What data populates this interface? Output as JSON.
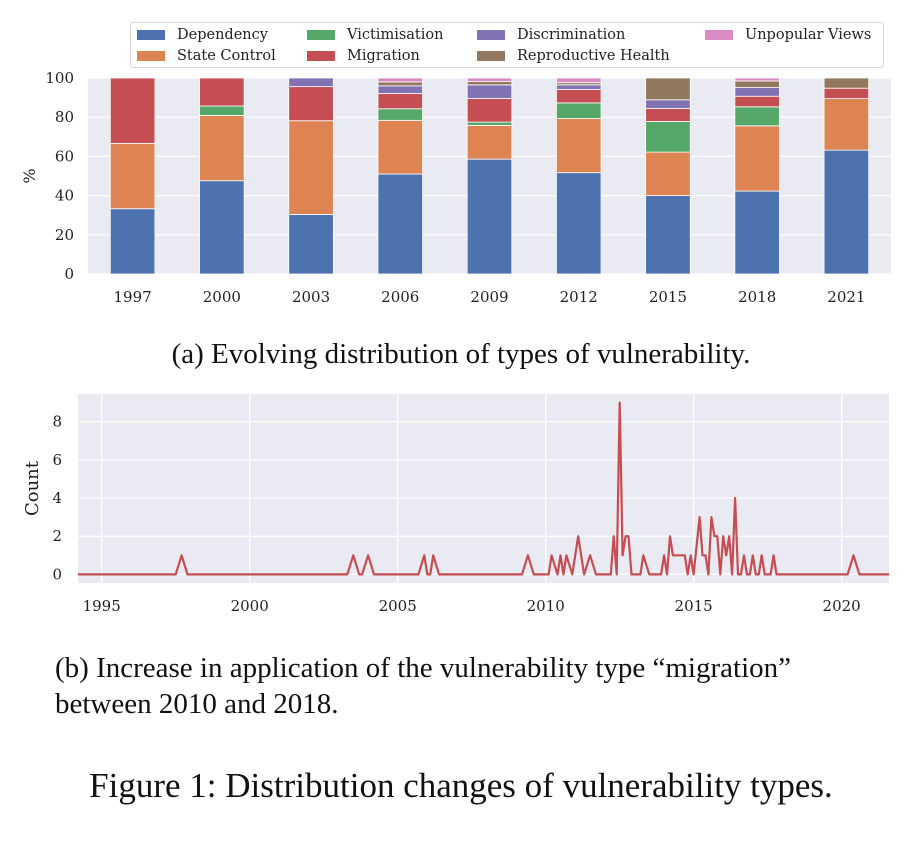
{
  "chart_data": [
    {
      "type": "bar",
      "stacked": true,
      "title": "",
      "caption": "(a) Evolving distribution of types of vulnerability.",
      "xlabel": "",
      "ylabel": "%",
      "ylim": [
        0,
        100
      ],
      "yticks": [
        "0",
        "20",
        "40",
        "60",
        "80",
        "100"
      ],
      "legend_position": "top",
      "grid": true,
      "categories": [
        "1997",
        "2000",
        "2003",
        "2006",
        "2009",
        "2012",
        "2015",
        "2018",
        "2021"
      ],
      "series": [
        {
          "name": "Dependency",
          "color": "#4c72b0",
          "values": [
            33.3,
            47.6,
            30.4,
            51.0,
            58.6,
            51.7,
            40.0,
            42.3,
            63.2
          ]
        },
        {
          "name": "State Control",
          "color": "#dd8452",
          "values": [
            33.3,
            33.3,
            47.8,
            27.4,
            17.2,
            27.6,
            22.2,
            33.3,
            26.3
          ]
        },
        {
          "name": "Victimisation",
          "color": "#55a868",
          "values": [
            0,
            4.8,
            0,
            5.9,
            1.7,
            8.0,
            15.6,
            9.7,
            0
          ]
        },
        {
          "name": "Migration",
          "color": "#c44e52",
          "values": [
            33.4,
            14.3,
            17.4,
            7.8,
            12.1,
            6.9,
            6.7,
            5.4,
            5.3
          ]
        },
        {
          "name": "Discrimination",
          "color": "#8172b3",
          "values": [
            0,
            0,
            4.4,
            3.9,
            6.9,
            2.3,
            4.4,
            4.4,
            0
          ]
        },
        {
          "name": "Reproductive Health",
          "color": "#937860",
          "values": [
            0,
            0,
            0,
            2.0,
            1.7,
            1.1,
            11.1,
            3.4,
            5.2
          ]
        },
        {
          "name": "Unpopular Views",
          "color": "#da8bc3",
          "values": [
            0,
            0,
            0,
            2.0,
            1.8,
            2.4,
            0,
            1.5,
            0
          ]
        }
      ]
    },
    {
      "type": "line",
      "title": "",
      "caption_lines": [
        "(b) Increase in application of the vulnerability type “migration”",
        "between 2010 and 2018."
      ],
      "xlabel": "",
      "ylabel": "Count",
      "xlim": [
        1994.2,
        2021.6
      ],
      "ylim": [
        -0.45,
        9.45
      ],
      "xticks": [
        1995,
        2000,
        2005,
        2010,
        2015,
        2020
      ],
      "yticks": [
        0,
        2,
        4,
        6,
        8
      ],
      "grid": true,
      "series": [
        {
          "name": "migration",
          "color": "#c44e52",
          "points": [
            [
              1994.2,
              0
            ],
            [
              1997.5,
              0
            ],
            [
              1997.7,
              1
            ],
            [
              1997.9,
              0
            ],
            [
              2003.3,
              0
            ],
            [
              2003.5,
              1
            ],
            [
              2003.7,
              0
            ],
            [
              2003.8,
              0
            ],
            [
              2004.0,
              1
            ],
            [
              2004.2,
              0
            ],
            [
              2005.7,
              0
            ],
            [
              2005.9,
              1
            ],
            [
              2006.0,
              0
            ],
            [
              2006.1,
              0
            ],
            [
              2006.2,
              1
            ],
            [
              2006.4,
              0
            ],
            [
              2009.2,
              0
            ],
            [
              2009.4,
              1
            ],
            [
              2009.6,
              0
            ],
            [
              2010.1,
              0
            ],
            [
              2010.2,
              1
            ],
            [
              2010.4,
              0
            ],
            [
              2010.5,
              1
            ],
            [
              2010.6,
              0
            ],
            [
              2010.7,
              1
            ],
            [
              2010.9,
              0
            ],
            [
              2011.1,
              2
            ],
            [
              2011.3,
              0
            ],
            [
              2011.5,
              1
            ],
            [
              2011.7,
              0
            ],
            [
              2012.2,
              0
            ],
            [
              2012.3,
              2
            ],
            [
              2012.4,
              0
            ],
            [
              2012.5,
              9
            ],
            [
              2012.6,
              1
            ],
            [
              2012.7,
              2
            ],
            [
              2012.8,
              2
            ],
            [
              2012.9,
              0
            ],
            [
              2013.2,
              0
            ],
            [
              2013.3,
              1
            ],
            [
              2013.5,
              0
            ],
            [
              2013.9,
              0
            ],
            [
              2014.0,
              1
            ],
            [
              2014.1,
              0
            ],
            [
              2014.2,
              2
            ],
            [
              2014.3,
              1
            ],
            [
              2014.5,
              1
            ],
            [
              2014.7,
              1
            ],
            [
              2014.8,
              0
            ],
            [
              2014.9,
              1
            ],
            [
              2015.0,
              0
            ],
            [
              2015.2,
              3
            ],
            [
              2015.3,
              1
            ],
            [
              2015.4,
              1
            ],
            [
              2015.5,
              0
            ],
            [
              2015.6,
              3
            ],
            [
              2015.7,
              2
            ],
            [
              2015.8,
              2
            ],
            [
              2015.9,
              0
            ],
            [
              2016.0,
              2
            ],
            [
              2016.1,
              1
            ],
            [
              2016.2,
              2
            ],
            [
              2016.3,
              0
            ],
            [
              2016.4,
              4
            ],
            [
              2016.5,
              0
            ],
            [
              2016.6,
              0
            ],
            [
              2016.7,
              1
            ],
            [
              2016.8,
              0
            ],
            [
              2016.9,
              0
            ],
            [
              2017.0,
              1
            ],
            [
              2017.1,
              0
            ],
            [
              2017.2,
              0
            ],
            [
              2017.3,
              1
            ],
            [
              2017.4,
              0
            ],
            [
              2017.6,
              0
            ],
            [
              2017.7,
              1
            ],
            [
              2017.8,
              0
            ],
            [
              2020.2,
              0
            ],
            [
              2020.4,
              1
            ],
            [
              2020.6,
              0
            ],
            [
              2021.6,
              0
            ]
          ]
        }
      ]
    }
  ],
  "captions": {
    "panel_a": "(a) Evolving distribution of types of vulnerability.",
    "panel_b_line1": "(b) Increase in application of the vulnerability type “migration”",
    "panel_b_line2": "between 2010 and 2018.",
    "figure": "Figure 1: Distribution changes of vulnerability types."
  }
}
